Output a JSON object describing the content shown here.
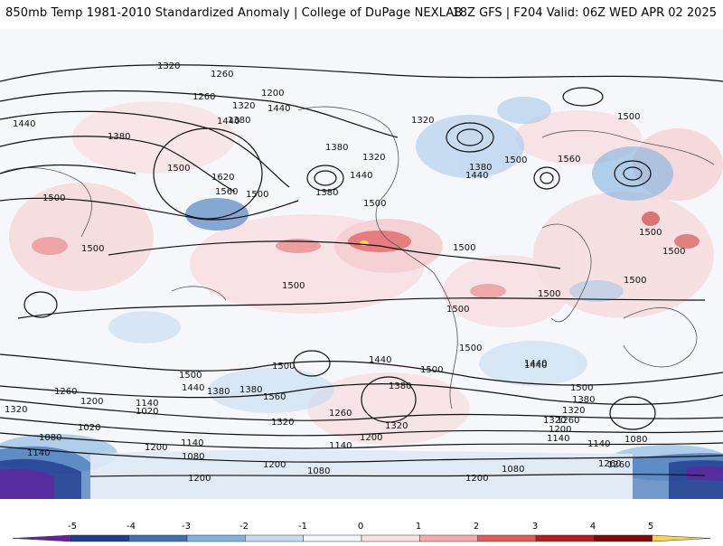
{
  "header": {
    "title_left": "850mb Temp 1981-2010 Standardized Anomaly | College of DuPage NEXLAB",
    "title_right": "18Z GFS | F204 Valid: 06Z WED APR 02 2025"
  },
  "colorbar": {
    "ticks": [
      "-5",
      "-4",
      "-3",
      "-2",
      "-1",
      "0",
      "1",
      "2",
      "3",
      "4",
      "5"
    ],
    "colors": [
      "#6a1fa0",
      "#1f3b8c",
      "#3c71b8",
      "#7fb2df",
      "#c5dcf0",
      "#f4f6fb",
      "#fbe0e0",
      "#f1a9a9",
      "#e05a5a",
      "#b81c1c",
      "#7d0a0a",
      "#ffd24a"
    ]
  },
  "map": {
    "contour_labels": {
      "l1": "1320",
      "l2": "1260",
      "l3": "1200",
      "l4": "1260",
      "l5": "1320",
      "l6": "1440",
      "l7": "1380",
      "l8": "1440",
      "l9": "1500",
      "l10": "1620",
      "l11": "1560",
      "l12": "1500",
      "l13": "1380",
      "l14": "1380",
      "l15": "1440",
      "l16": "1320",
      "l17": "1380",
      "l18": "1440",
      "l19": "1500",
      "l20": "1320",
      "l21": "1380",
      "l22": "1500",
      "l23": "1440",
      "l24": "1560",
      "l25": "1500",
      "l26": "1500",
      "l27": "1500",
      "l28": "1500",
      "l29": "1500",
      "l30": "1500",
      "l31": "1500",
      "l32": "1500",
      "l33": "1500",
      "l34": "1500",
      "l35": "1500",
      "l36": "1440",
      "l37": "1380",
      "l38": "1500",
      "l39": "1500",
      "l40": "1440",
      "l41": "1380",
      "l42": "1320",
      "l43": "1260",
      "l44": "1200",
      "l45": "1140",
      "l46": "1020",
      "l47": "1080",
      "l48": "1140",
      "l49": "1200",
      "l50": "1260",
      "l51": "1320",
      "l52": "1560",
      "l53": "1440",
      "l54": "1500",
      "l55": "1380",
      "l56": "1320",
      "l57": "1260",
      "l58": "1200",
      "l59": "1140",
      "l60": "1080",
      "l61": "1020",
      "l62": "1080",
      "l63": "1140",
      "l64": "1200",
      "l65": "1080",
      "l66": "1140",
      "l67": "1200",
      "l68": "1260",
      "l69": "1320",
      "l70": "1140",
      "l71": "1200",
      "l72": "1080",
      "l73": "1260",
      "l74": "1320",
      "l75": "1440",
      "l76": "1500",
      "l77": "1380",
      "l78": "1200"
    }
  }
}
